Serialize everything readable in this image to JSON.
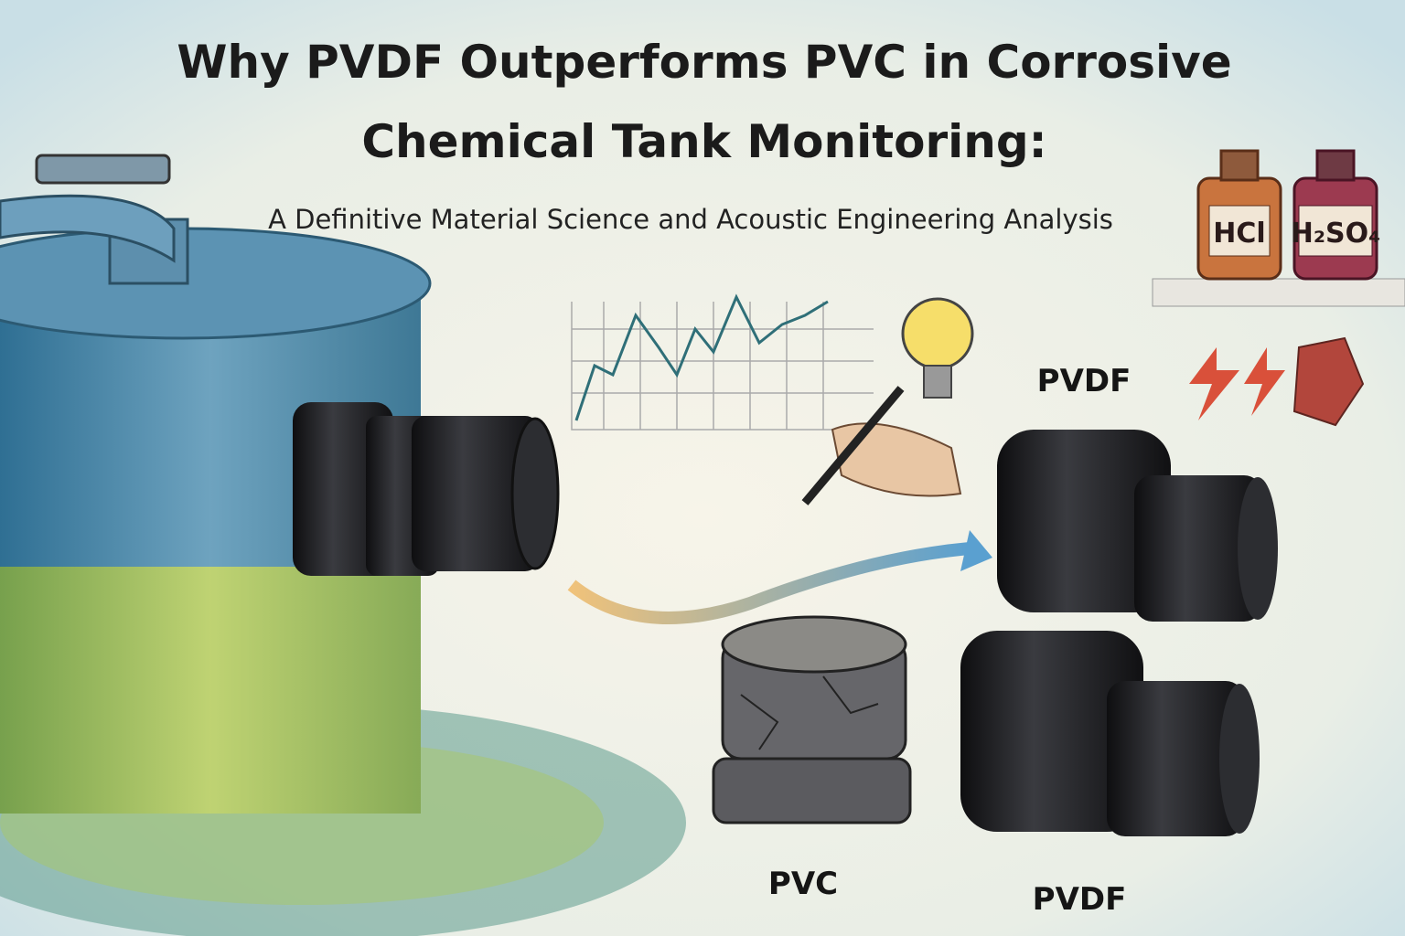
{
  "title": {
    "line1": "Why PVDF Outperforms PVC in Corrosive",
    "line2": "Chemical Tank Monitoring:",
    "subtitle": "A Definitive Material Science and Acoustic Engineering Analysis"
  },
  "bottles": [
    {
      "label": "HCl"
    },
    {
      "label": "H₂SO₄"
    }
  ],
  "sensors": [
    {
      "label": "PVDF"
    },
    {
      "label": "PVC"
    },
    {
      "label": "PVDF"
    }
  ]
}
